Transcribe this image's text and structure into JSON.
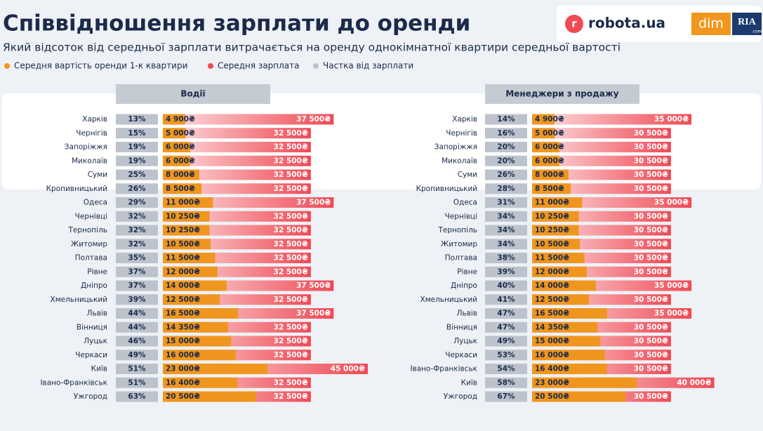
{
  "header": {
    "title": "Співвідношення зарплати до оренди",
    "subtitle": "Який відсоток від середньої зарплати витрачається на оренду однокімнатної квартири середньої вартості",
    "logos": {
      "robota": "robota.ua",
      "robota_icon": "r",
      "dim": "dim",
      "ria": "RIA",
      "com": ".com"
    }
  },
  "chart_data": [
    {
      "type": "bar",
      "title": "Водії",
      "xlim": [
        0,
        45000
      ],
      "categories": [
        "Харків",
        "Чернігів",
        "Запоріжжя",
        "Миколаїв",
        "Суми",
        "Кропивницький",
        "Одеса",
        "Чернівці",
        "Тернопіль",
        "Житомир",
        "Полтава",
        "Рівне",
        "Дніпро",
        "Хмельницький",
        "Львів",
        "Вінниця",
        "Луцьк",
        "Черкаси",
        "Київ",
        "Івано-Франківськ",
        "Ужгород"
      ],
      "series": [
        {
          "name": "Середня вартість оренди 1-к квартири",
          "color": "#f0961e",
          "values": [
            4900,
            5000,
            6000,
            6000,
            8000,
            8500,
            11000,
            10250,
            10250,
            10500,
            11500,
            12000,
            14000,
            12500,
            16500,
            14350,
            15000,
            16000,
            23000,
            16400,
            20500
          ],
          "value_labels": [
            "4 900₴",
            "5 000₴",
            "6 000₴",
            "6 000₴",
            "8 000₴",
            "8 500₴",
            "11 000₴",
            "10 250₴",
            "10 250₴",
            "10 500₴",
            "11 500₴",
            "12 000₴",
            "14 000₴",
            "12 500₴",
            "16 500₴",
            "14 350₴",
            "15 000₴",
            "16 000₴",
            "23 000₴",
            "16 400₴",
            "20 500₴"
          ]
        },
        {
          "name": "Середня зарплата",
          "color": "#ef4a55",
          "values": [
            37500,
            32500,
            32500,
            32500,
            32500,
            32500,
            37500,
            32500,
            32500,
            32500,
            32500,
            32500,
            37500,
            32500,
            37500,
            32500,
            32500,
            32500,
            45000,
            32500,
            32500
          ],
          "value_labels": [
            "37 500₴",
            "32 500₴",
            "32 500₴",
            "32 500₴",
            "32 500₴",
            "32 500₴",
            "37 500₴",
            "32 500₴",
            "32 500₴",
            "32 500₴",
            "32 500₴",
            "32 500₴",
            "37 500₴",
            "32 500₴",
            "37 500₴",
            "32 500₴",
            "32 500₴",
            "32 500₴",
            "45 000₴",
            "32 500₴",
            "32 500₴"
          ]
        },
        {
          "name": "Частка від зарплати",
          "color": "#bcc3cd",
          "values": [
            13,
            15,
            19,
            19,
            25,
            26,
            29,
            32,
            32,
            32,
            35,
            37,
            37,
            39,
            44,
            44,
            46,
            49,
            51,
            51,
            63
          ],
          "value_labels": [
            "13%",
            "15%",
            "19%",
            "19%",
            "25%",
            "26%",
            "29%",
            "32%",
            "32%",
            "32%",
            "35%",
            "37%",
            "37%",
            "39%",
            "44%",
            "44%",
            "46%",
            "49%",
            "51%",
            "51%",
            "63%"
          ]
        }
      ]
    },
    {
      "type": "bar",
      "title": "Менеджери з продажу",
      "xlim": [
        0,
        45000
      ],
      "categories": [
        "Харків",
        "Чернігів",
        "Запоріжжя",
        "Миколаїв",
        "Суми",
        "Кропивницький",
        "Одеса",
        "Чернівці",
        "Тернопіль",
        "Житомир",
        "Полтава",
        "Рівне",
        "Дніпро",
        "Хмельницький",
        "Львів",
        "Вінниця",
        "Луцьк",
        "Черкаси",
        "Івано-Франківськ",
        "Київ",
        "Ужгород"
      ],
      "series": [
        {
          "color": "#f0961e",
          "values": [
            4900,
            5000,
            6000,
            6000,
            8000,
            8500,
            11000,
            10250,
            10250,
            10500,
            11500,
            12000,
            14000,
            12500,
            16500,
            14350,
            15000,
            16000,
            16400,
            23000,
            20500
          ],
          "value_labels": [
            "4 900₴",
            "5 000₴",
            "6 000₴",
            "6 000₴",
            "8 000₴",
            "8 500₴",
            "11 000₴",
            "10 250₴",
            "10 250₴",
            "10 500₴",
            "11 500₴",
            "12 000₴",
            "14 000₴",
            "12 500₴",
            "16 500₴",
            "14 350₴",
            "15 000₴",
            "16 000₴",
            "16 400₴",
            "23 000₴",
            "20 500₴"
          ]
        },
        {
          "color": "#ef4a55",
          "values": [
            35000,
            30500,
            30500,
            30500,
            30500,
            30500,
            35000,
            30500,
            30500,
            30500,
            30500,
            30500,
            35000,
            30500,
            35000,
            30500,
            30500,
            30500,
            30500,
            40000,
            30500
          ],
          "value_labels": [
            "35 000₴",
            "30 500₴",
            "30 500₴",
            "30 500₴",
            "30 500₴",
            "30 500₴",
            "35 000₴",
            "30 500₴",
            "30 500₴",
            "30 500₴",
            "30 500₴",
            "30 500₴",
            "35 000₴",
            "30 500₴",
            "35 000₴",
            "30 500₴",
            "30 500₴",
            "30 500₴",
            "30 500₴",
            "40 000₴",
            "30 500₴"
          ]
        },
        {
          "color": "#bcc3cd",
          "values": [
            14,
            16,
            20,
            20,
            26,
            28,
            31,
            34,
            34,
            34,
            38,
            39,
            40,
            41,
            47,
            47,
            49,
            53,
            54,
            58,
            67
          ],
          "value_labels": [
            "14%",
            "16%",
            "20%",
            "20%",
            "26%",
            "28%",
            "31%",
            "34%",
            "34%",
            "34%",
            "38%",
            "39%",
            "40%",
            "41%",
            "47%",
            "47%",
            "49%",
            "53%",
            "54%",
            "58%",
            "67%"
          ]
        }
      ]
    }
  ]
}
